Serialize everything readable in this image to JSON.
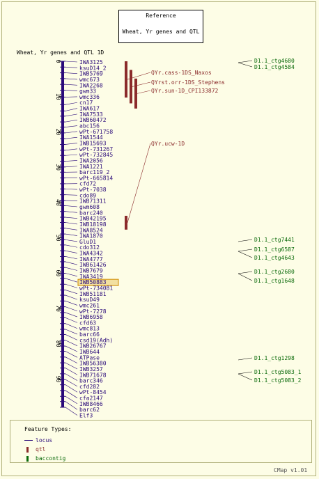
{
  "reference": {
    "title": "Reference",
    "map_name": "Wheat, Yr genes and QTL"
  },
  "map_title": "Wheat, Yr genes and QTL 1D",
  "colors": {
    "locus": "#2a0a7a",
    "qtl": "#8b2b2b",
    "contig": "#0a6a0a",
    "axis": "#2a0a7a",
    "highlight_fill": "#f2e0a0",
    "highlight_border": "#d08a00"
  },
  "axis": {
    "min": 0,
    "max": 98,
    "ticks": [
      "0",
      "10",
      "20",
      "30",
      "40",
      "50",
      "60",
      "70",
      "80",
      "90"
    ]
  },
  "loci": [
    {
      "name": "IWA3125",
      "pos": 0.0
    },
    {
      "name": "ksuD14_2",
      "pos": 1.0
    },
    {
      "name": "IWB5769",
      "pos": 2.0
    },
    {
      "name": "wmc673",
      "pos": 3.0
    },
    {
      "name": "IWA2268",
      "pos": 4.0
    },
    {
      "name": "gwm33",
      "pos": 5.0
    },
    {
      "name": "wmc336",
      "pos": 6.2
    },
    {
      "name": "cn17",
      "pos": 7.5
    },
    {
      "name": "IWA617",
      "pos": 8.6
    },
    {
      "name": "IWA7533",
      "pos": 9.5
    },
    {
      "name": "IWB60472",
      "pos": 10.5
    },
    {
      "name": "abc156",
      "pos": 11.4
    },
    {
      "name": "wPt-671758",
      "pos": 12.4
    },
    {
      "name": "IWA1544",
      "pos": 13.4
    },
    {
      "name": "IWB15693",
      "pos": 14.4
    },
    {
      "name": "wPt-731267",
      "pos": 15.4
    },
    {
      "name": "wPt-732845",
      "pos": 16.3
    },
    {
      "name": "IWA2056",
      "pos": 17.3
    },
    {
      "name": "IWA1221",
      "pos": 18.3
    },
    {
      "name": "barc119_2",
      "pos": 19.2
    },
    {
      "name": "wPt-665814",
      "pos": 20.2
    },
    {
      "name": "cfd72",
      "pos": 21.2
    },
    {
      "name": "wPt-7038",
      "pos": 22.1
    },
    {
      "name": "cdo89",
      "pos": 23.1
    },
    {
      "name": "IWB71311",
      "pos": 24.1
    },
    {
      "name": "gwm608",
      "pos": 25.0
    },
    {
      "name": "barc240",
      "pos": 26.0
    },
    {
      "name": "IWB42195",
      "pos": 27.0
    },
    {
      "name": "IWB18198",
      "pos": 27.9
    },
    {
      "name": "IWA8524",
      "pos": 28.9
    },
    {
      "name": "IWA1870",
      "pos": 29.9
    },
    {
      "name": "GluD1",
      "pos": 30.9
    },
    {
      "name": "cdo312",
      "pos": 31.8
    },
    {
      "name": "IWA4342",
      "pos": 32.8
    },
    {
      "name": "IWA4777",
      "pos": 33.8
    },
    {
      "name": "IWB61426",
      "pos": 34.7
    },
    {
      "name": "IWB7679",
      "pos": 35.7
    },
    {
      "name": "IWA3419",
      "pos": 36.7
    },
    {
      "name": "IWB50883",
      "pos": 37.6,
      "highlight": true
    },
    {
      "name": "wPt-734081",
      "pos": 38.6
    },
    {
      "name": "IWB51181",
      "pos": 39.6
    },
    {
      "name": "ksuD49",
      "pos": 40.5
    },
    {
      "name": "wmc261",
      "pos": 41.5
    },
    {
      "name": "wPt-7278",
      "pos": 42.5
    },
    {
      "name": "IWB6958",
      "pos": 43.5
    },
    {
      "name": "cfd63",
      "pos": 44.4
    },
    {
      "name": "wmc813",
      "pos": 45.4
    },
    {
      "name": "barc66",
      "pos": 46.4
    },
    {
      "name": "csd19(Adh)",
      "pos": 47.3
    },
    {
      "name": "IWB26767",
      "pos": 48.3
    },
    {
      "name": "IWB644",
      "pos": 49.3
    },
    {
      "name": "ATPase",
      "pos": 50.2
    },
    {
      "name": "IWB56380",
      "pos": 51.2
    },
    {
      "name": "IWB3257",
      "pos": 52.2
    },
    {
      "name": "IWB71678",
      "pos": 53.1
    },
    {
      "name": "barc346",
      "pos": 54.1
    },
    {
      "name": "cfd282",
      "pos": 55.1
    },
    {
      "name": "wPt-8454",
      "pos": 56.0
    },
    {
      "name": "cfa2147",
      "pos": 57.0
    },
    {
      "name": "IWB8466",
      "pos": 58.0
    },
    {
      "name": "barc62",
      "pos": 58.9
    },
    {
      "name": "Elf3",
      "pos": 59.9
    }
  ],
  "qtls": [
    {
      "name": "QYr.cass-1DS_Naxos",
      "top": 0.0,
      "bottom": 6.3,
      "lane": 0
    },
    {
      "name": "QYrst.orr-1DS_Stephens",
      "top": 1.5,
      "bottom": 7.3,
      "lane": 1
    },
    {
      "name": "QYr.sun-1D_CPI133872",
      "top": 3.0,
      "bottom": 8.2,
      "lane": 2
    },
    {
      "name": "QYr.ucw-1D",
      "top": 26.8,
      "bottom": 29.2,
      "lane": 0
    }
  ],
  "contigs": [
    {
      "name": "D1.1_ctg4680"
    },
    {
      "name": "D1.1_ctg4584"
    },
    {
      "name": "D1.1_ctg7441"
    },
    {
      "name": "D1.1_ctg6587"
    },
    {
      "name": "D1.1_ctg4643"
    },
    {
      "name": "D1.1_ctg2680"
    },
    {
      "name": "D1.1_ctg1648"
    },
    {
      "name": "D1.1_ctg1298"
    },
    {
      "name": "D1.1_ctg5083_1"
    },
    {
      "name": "D1.1_ctg5083_2"
    }
  ],
  "legend": {
    "title": "Feature Types:",
    "items": [
      {
        "label": "locus",
        "kind": "line"
      },
      {
        "label": "qtl",
        "kind": "qtl"
      },
      {
        "label": "baccontig",
        "kind": "contig"
      }
    ]
  },
  "footer": "CMap v1.01"
}
